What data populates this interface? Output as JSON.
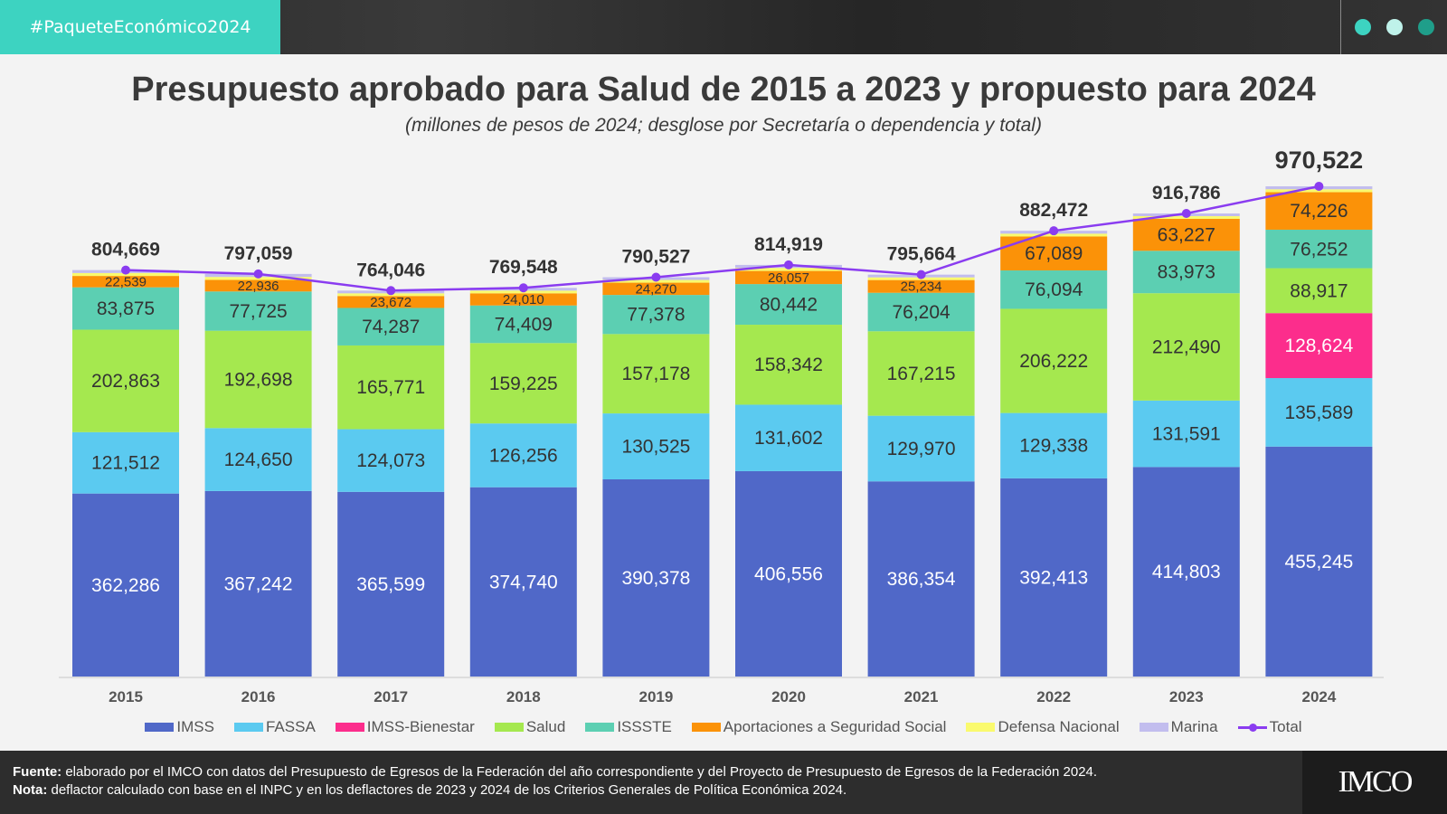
{
  "header": {
    "hashtag": "#PaqueteEconómico2024",
    "dot_colors": [
      "#3dd3c1",
      "#bff2ea",
      "#1f9e8a"
    ]
  },
  "footer": {
    "source_label": "Fuente:",
    "source_text": " elaborado por el IMCO con datos del Presupuesto de Egresos de la Federación del año correspondiente y del Proyecto de Presupuesto de Egresos de la Federación 2024.",
    "note_label": "Nota:",
    "note_text": " deflactor calculado con base en el INPC y en los deflactores de 2023 y 2024 de los Criterios Generales de Política Económica 2024.",
    "logo": "IMCO"
  },
  "chart_data": {
    "type": "bar",
    "stacked": true,
    "title": "Presupuesto aprobado para Salud de 2015 a 2023 y propuesto para 2024",
    "subtitle": "(millones de pesos de 2024; desglose por Secretaría o dependencia y total)",
    "categories": [
      "2015",
      "2016",
      "2017",
      "2018",
      "2019",
      "2020",
      "2021",
      "2022",
      "2023",
      "2024"
    ],
    "series": [
      {
        "name": "IMSS",
        "color": "#5068c8",
        "label_color": "#ffffff",
        "values": [
          362286,
          367242,
          365599,
          374740,
          390378,
          406556,
          386354,
          392413,
          414803,
          455245
        ]
      },
      {
        "name": "FASSA",
        "color": "#5bcaf0",
        "label_color": "#333333",
        "values": [
          121512,
          124650,
          124073,
          126256,
          130525,
          131602,
          129970,
          129338,
          131591,
          135589
        ]
      },
      {
        "name": "IMSS-Bienestar",
        "color": "#fc2d8c",
        "label_color": "#ffffff",
        "values": [
          0,
          0,
          0,
          0,
          0,
          0,
          0,
          0,
          0,
          128624
        ]
      },
      {
        "name": "Salud",
        "color": "#a5e84f",
        "label_color": "#333333",
        "values": [
          202863,
          192698,
          165771,
          159225,
          157178,
          158342,
          167215,
          206222,
          212490,
          88917
        ]
      },
      {
        "name": "ISSSTE",
        "color": "#5ccfb2",
        "label_color": "#333333",
        "values": [
          83875,
          77725,
          74287,
          74409,
          77378,
          80442,
          76204,
          76094,
          83973,
          76252
        ]
      },
      {
        "name": "Aportaciones a Seguridad Social",
        "color": "#fb9208",
        "label_color": "#333333",
        "values": [
          22539,
          22936,
          23672,
          24010,
          24270,
          26057,
          25234,
          67089,
          63227,
          74226
        ]
      },
      {
        "name": "Defensa Nacional",
        "color": "#fafa6e",
        "label_color": "#333333",
        "values": [
          5800,
          5900,
          5300,
          5450,
          5400,
          6000,
          5300,
          5650,
          5350,
          5800
        ],
        "labeled": false
      },
      {
        "name": "Marina",
        "color": "#c2bdee",
        "label_color": "#333333",
        "values": [
          5794,
          5908,
          5344,
          5458,
          5398,
          5920,
          5387,
          5666,
          5352,
          5869
        ],
        "labeled": false
      }
    ],
    "total": {
      "name": "Total",
      "color": "#8a3cf0",
      "values": [
        804669,
        797059,
        764046,
        769548,
        790527,
        814919,
        795664,
        882472,
        916786,
        970522
      ],
      "labels": [
        "804,669",
        "797,059",
        "764,046",
        "769,548",
        "790,527",
        "814,919",
        "795,664",
        "882,472",
        "916,786",
        "970,522"
      ]
    },
    "ylim": [
      0,
      970522
    ],
    "grid": false,
    "legend": "bottom",
    "xlabel": "",
    "ylabel": ""
  }
}
